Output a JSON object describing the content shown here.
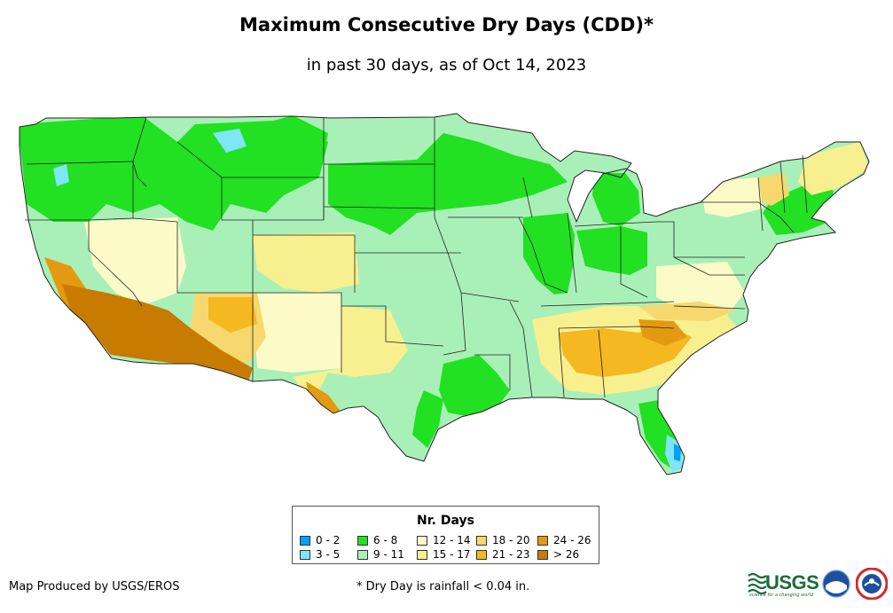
{
  "header": {
    "title": "Maximum Consecutive Dry Days (CDD)*",
    "subtitle": "in past 30 days, as of Oct 14, 2023"
  },
  "map": {
    "region": "Contiguous United States",
    "colors": {
      "c0_2": "#00a0ff",
      "c3_5": "#7ee6f4",
      "c6_8": "#22e022",
      "c9_11": "#a9f0b8",
      "c12_14": "#fcfbc8",
      "c15_17": "#f8f08e",
      "c18_20": "#f6d86e",
      "c21_23": "#f5b820",
      "c24_26": "#e39a10",
      "c26p": "#c77b00",
      "state_line": "#222222"
    }
  },
  "legend": {
    "title": "Nr. Days",
    "items": [
      {
        "label": "0 - 2",
        "color": "#00a0ff"
      },
      {
        "label": "3 - 5",
        "color": "#7ee6f4"
      },
      {
        "label": "6 - 8",
        "color": "#22e022"
      },
      {
        "label": "9 - 11",
        "color": "#a9f0b8"
      },
      {
        "label": "12 - 14",
        "color": "#fcfbc8"
      },
      {
        "label": "15 - 17",
        "color": "#f8f08e"
      },
      {
        "label": "18 - 20",
        "color": "#f6d86e"
      },
      {
        "label": "21 - 23",
        "color": "#f5b820"
      },
      {
        "label": "24 - 26",
        "color": "#e39a10"
      },
      {
        "label": "> 26",
        "color": "#c77b00"
      }
    ]
  },
  "footer": {
    "credit": "Map Produced by USGS/EROS",
    "footnote": "* Dry Day is rainfall < 0.04 in.",
    "logo_usgs": "USGS",
    "logo_usgs_tagline": "science for a changing world"
  }
}
